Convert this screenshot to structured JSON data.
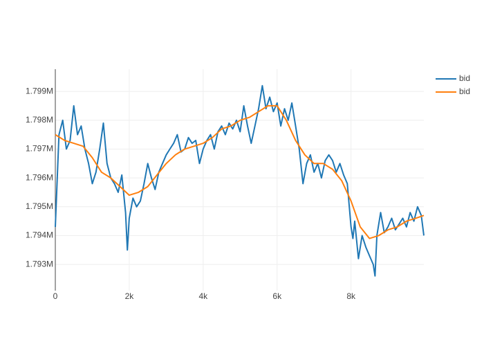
{
  "chart_data": {
    "type": "line",
    "xlim": [
      0,
      9970
    ],
    "ylim": [
      1792090,
      1799770
    ],
    "xticks": [
      0,
      {
        "value": 2000,
        "label": "2k"
      },
      {
        "value": 4000,
        "label": "4k"
      },
      {
        "value": 6000,
        "label": "6k"
      },
      {
        "value": 8000,
        "label": "8k"
      }
    ],
    "yticks": [
      {
        "value": 1793000,
        "label": "1.793M"
      },
      {
        "value": 1794000,
        "label": "1.794M"
      },
      {
        "value": 1795000,
        "label": "1.795M"
      },
      {
        "value": 1796000,
        "label": "1.796M"
      },
      {
        "value": 1797000,
        "label": "1.797M"
      },
      {
        "value": 1798000,
        "label": "1.798M"
      },
      {
        "value": 1799000,
        "label": "1.799M"
      }
    ],
    "grid": true,
    "legend": "top-right",
    "series": [
      {
        "name": "bid",
        "color": "#1f77b4",
        "x": [
          0,
          100,
          200,
          300,
          400,
          500,
          600,
          700,
          800,
          900,
          1000,
          1100,
          1200,
          1300,
          1400,
          1500,
          1600,
          1700,
          1800,
          1900,
          1950,
          2000,
          2100,
          2200,
          2300,
          2400,
          2500,
          2600,
          2700,
          2800,
          2900,
          3000,
          3100,
          3200,
          3300,
          3400,
          3500,
          3600,
          3700,
          3800,
          3900,
          4000,
          4100,
          4200,
          4300,
          4400,
          4500,
          4600,
          4700,
          4800,
          4900,
          5000,
          5100,
          5200,
          5300,
          5400,
          5500,
          5600,
          5700,
          5800,
          5900,
          6000,
          6100,
          6200,
          6300,
          6400,
          6500,
          6600,
          6700,
          6800,
          6900,
          7000,
          7100,
          7200,
          7300,
          7400,
          7500,
          7600,
          7700,
          7800,
          7900,
          8000,
          8050,
          8100,
          8200,
          8300,
          8400,
          8500,
          8600,
          8650,
          8700,
          8800,
          8900,
          9000,
          9100,
          9200,
          9300,
          9400,
          9500,
          9600,
          9700,
          9800,
          9900,
          9970
        ],
        "values": [
          1794300,
          1797500,
          1798000,
          1797000,
          1797300,
          1798500,
          1797500,
          1797800,
          1797000,
          1796500,
          1795800,
          1796200,
          1797000,
          1797900,
          1796500,
          1796000,
          1795800,
          1795500,
          1796100,
          1794800,
          1793500,
          1794600,
          1795300,
          1795000,
          1795200,
          1795800,
          1796500,
          1796000,
          1795600,
          1796200,
          1796500,
          1796800,
          1797000,
          1797200,
          1797500,
          1796900,
          1797000,
          1797400,
          1797200,
          1797300,
          1796500,
          1797000,
          1797300,
          1797500,
          1797000,
          1797600,
          1797800,
          1797500,
          1797900,
          1797700,
          1798000,
          1797600,
          1798500,
          1797800,
          1797200,
          1797800,
          1798400,
          1799200,
          1798400,
          1798800,
          1798300,
          1798600,
          1797800,
          1798400,
          1798000,
          1798600,
          1797800,
          1797000,
          1795800,
          1796500,
          1796800,
          1796200,
          1796500,
          1796000,
          1796600,
          1796800,
          1796600,
          1796200,
          1796500,
          1796100,
          1795800,
          1794300,
          1793900,
          1794500,
          1793200,
          1794000,
          1793600,
          1793300,
          1793000,
          1792600,
          1794000,
          1794800,
          1794100,
          1794300,
          1794600,
          1794200,
          1794400,
          1794600,
          1794300,
          1794800,
          1794500,
          1795000,
          1794700,
          1794000
        ]
      },
      {
        "name": "bid",
        "color": "#ff7f0e",
        "x": [
          0,
          250,
          500,
          750,
          1000,
          1250,
          1500,
          1750,
          2000,
          2250,
          2500,
          2750,
          3000,
          3250,
          3500,
          3750,
          4000,
          4250,
          4500,
          4750,
          5000,
          5250,
          5500,
          5750,
          6000,
          6250,
          6500,
          6750,
          7000,
          7250,
          7500,
          7750,
          8000,
          8250,
          8500,
          8750,
          9000,
          9250,
          9500,
          9750,
          9970
        ],
        "values": [
          1797500,
          1797300,
          1797200,
          1797100,
          1796700,
          1796200,
          1796000,
          1795700,
          1795400,
          1795500,
          1795700,
          1796100,
          1796500,
          1796800,
          1797000,
          1797100,
          1797200,
          1797400,
          1797700,
          1797800,
          1798000,
          1798100,
          1798300,
          1798500,
          1798500,
          1798000,
          1797300,
          1796800,
          1796500,
          1796500,
          1796300,
          1795900,
          1795200,
          1794300,
          1793900,
          1794000,
          1794200,
          1794300,
          1794500,
          1794600,
          1794700
        ]
      }
    ]
  }
}
